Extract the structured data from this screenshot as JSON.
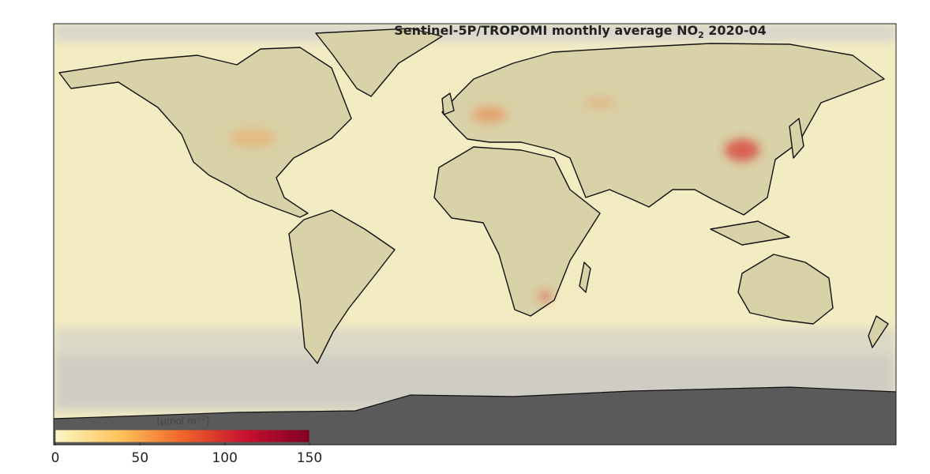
{
  "map": {
    "title": [
      "Sentinel-5P/TROPOMI monthly average NO",
      "2",
      " 2020-04"
    ],
    "colorbar": {
      "label": [
        "[μmol m",
        "−2",
        "]"
      ],
      "lim": [
        0,
        150
      ],
      "ticks": [
        0,
        50,
        100,
        150
      ],
      "colors": [
        "#fff7c4",
        "#fdc45a",
        "#f0652a",
        "#c8102e",
        "#800026"
      ]
    }
  }
}
